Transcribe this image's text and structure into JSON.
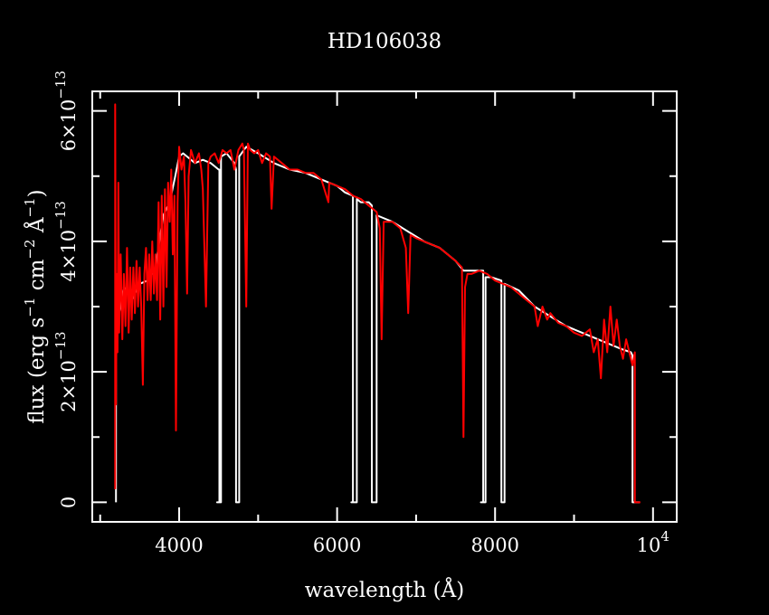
{
  "chart_data": {
    "type": "line",
    "title": "HD106038",
    "xlabel": "wavelength (Å)",
    "ylabel": {
      "prefix": "flux (erg s",
      "exp1": "−1",
      "mid1": " cm",
      "exp2": "−2",
      "mid2": " Å",
      "exp3": "−1",
      "suffix": ")"
    },
    "xlim": [
      2900,
      10300
    ],
    "ylim": [
      -3e-14,
      6.3e-13
    ],
    "x_ticks": [
      {
        "value": 4000,
        "label": "4000"
      },
      {
        "value": 6000,
        "label": "6000"
      },
      {
        "value": 8000,
        "label": "8000"
      },
      {
        "value": 10000,
        "label": "10",
        "exp": "4"
      }
    ],
    "y_ticks": [
      {
        "value": 0,
        "label": "0",
        "exp": ""
      },
      {
        "value": 2e-13,
        "label": "2×10",
        "exp": "−13"
      },
      {
        "value": 4e-13,
        "label": "4×10",
        "exp": "−13"
      },
      {
        "value": 6e-13,
        "label": "6×10",
        "exp": "−13"
      }
    ],
    "series": [
      {
        "color": "#ffffff",
        "points": [
          [
            3200,
            0
          ],
          [
            3200,
            3.5e-13
          ],
          [
            3240,
            2.9e-13
          ],
          [
            3300,
            3.3e-13
          ],
          [
            3400,
            3.1e-13
          ],
          [
            3500,
            3.35e-13
          ],
          [
            3600,
            3.4e-13
          ],
          [
            3700,
            3.6e-13
          ],
          [
            3800,
            4.4e-13
          ],
          [
            3880,
            4.6e-13
          ],
          [
            3950,
            5e-13
          ],
          [
            4000,
            5.3e-13
          ],
          [
            4050,
            5.35e-13
          ],
          [
            4100,
            5.3e-13
          ],
          [
            4200,
            5.2e-13
          ],
          [
            4300,
            5.25e-13
          ],
          [
            4400,
            5.2e-13
          ],
          [
            4450,
            5.15e-13
          ],
          [
            4500,
            5.1e-13
          ],
          [
            4510,
            5.1e-13
          ],
          [
            4510,
            0
          ],
          [
            4480,
            0
          ],
          [
            4530,
            0
          ],
          [
            4530,
            5.3e-13
          ],
          [
            4600,
            5.35e-13
          ],
          [
            4700,
            5.2e-13
          ],
          [
            4720,
            5.1e-13
          ],
          [
            4720,
            0
          ],
          [
            4760,
            0
          ],
          [
            4760,
            5.3e-13
          ],
          [
            4850,
            5.45e-13
          ],
          [
            5000,
            5.35e-13
          ],
          [
            5200,
            5.2e-13
          ],
          [
            5400,
            5.1e-13
          ],
          [
            5600,
            5.05e-13
          ],
          [
            5800,
            4.95e-13
          ],
          [
            6000,
            4.85e-13
          ],
          [
            6100,
            4.75e-13
          ],
          [
            6200,
            4.7e-13
          ],
          [
            6200,
            0
          ],
          [
            6180,
            0
          ],
          [
            6250,
            0
          ],
          [
            6250,
            4.65e-13
          ],
          [
            6300,
            4.6e-13
          ],
          [
            6400,
            4.6e-13
          ],
          [
            6440,
            4.55e-13
          ],
          [
            6440,
            0
          ],
          [
            6500,
            0
          ],
          [
            6500,
            4.4e-13
          ],
          [
            6700,
            4.3e-13
          ],
          [
            6900,
            4.15e-13
          ],
          [
            7100,
            4e-13
          ],
          [
            7300,
            3.9e-13
          ],
          [
            7500,
            3.7e-13
          ],
          [
            7600,
            3.55e-13
          ],
          [
            7700,
            3.55e-13
          ],
          [
            7850,
            3.55e-13
          ],
          [
            7850,
            0
          ],
          [
            7820,
            0
          ],
          [
            7880,
            0
          ],
          [
            7880,
            3.45e-13
          ],
          [
            7950,
            3.45e-13
          ],
          [
            8080,
            3.4e-13
          ],
          [
            8080,
            0
          ],
          [
            8100,
            0
          ],
          [
            8120,
            0
          ],
          [
            8120,
            3.35e-13
          ],
          [
            8300,
            3.25e-13
          ],
          [
            8500,
            3e-13
          ],
          [
            8700,
            2.85e-13
          ],
          [
            8900,
            2.7e-13
          ],
          [
            9100,
            2.6e-13
          ],
          [
            9300,
            2.5e-13
          ],
          [
            9500,
            2.4e-13
          ],
          [
            9600,
            2.35e-13
          ],
          [
            9720,
            2.3e-13
          ],
          [
            9740,
            2.25e-13
          ],
          [
            9740,
            0
          ],
          [
            9830,
            0
          ]
        ]
      },
      {
        "color": "#ff0000",
        "points": [
          [
            3190,
            2e-14
          ],
          [
            3190,
            6.1e-13
          ],
          [
            3200,
            1.5e-13
          ],
          [
            3210,
            3.5e-13
          ],
          [
            3220,
            2.3e-13
          ],
          [
            3230,
            4.9e-13
          ],
          [
            3240,
            2.6e-13
          ],
          [
            3260,
            3.8e-13
          ],
          [
            3280,
            2.5e-13
          ],
          [
            3300,
            3.5e-13
          ],
          [
            3320,
            2.7e-13
          ],
          [
            3340,
            3.9e-13
          ],
          [
            3360,
            2.6e-13
          ],
          [
            3380,
            3.6e-13
          ],
          [
            3400,
            2.8e-13
          ],
          [
            3420,
            3.6e-13
          ],
          [
            3440,
            2.9e-13
          ],
          [
            3460,
            3.7e-13
          ],
          [
            3480,
            3e-13
          ],
          [
            3500,
            3.6e-13
          ],
          [
            3520,
            3e-13
          ],
          [
            3540,
            1.8e-13
          ],
          [
            3560,
            3.5e-13
          ],
          [
            3580,
            3.9e-13
          ],
          [
            3600,
            3.1e-13
          ],
          [
            3620,
            3.8e-13
          ],
          [
            3640,
            3.1e-13
          ],
          [
            3660,
            4e-13
          ],
          [
            3680,
            3.2e-13
          ],
          [
            3700,
            3.8e-13
          ],
          [
            3720,
            3.1e-13
          ],
          [
            3740,
            4.6e-13
          ],
          [
            3760,
            2.8e-13
          ],
          [
            3780,
            4.7e-13
          ],
          [
            3800,
            3e-13
          ],
          [
            3820,
            4.8e-13
          ],
          [
            3840,
            3.3e-13
          ],
          [
            3860,
            4.9e-13
          ],
          [
            3880,
            4.3e-13
          ],
          [
            3900,
            5.1e-13
          ],
          [
            3920,
            3.8e-13
          ],
          [
            3940,
            4.7e-13
          ],
          [
            3960,
            1.1e-13
          ],
          [
            3980,
            4.6e-13
          ],
          [
            4000,
            5.45e-13
          ],
          [
            4030,
            5.1e-13
          ],
          [
            4060,
            5.3e-13
          ],
          [
            4080,
            4.6e-13
          ],
          [
            4100,
            3.2e-13
          ],
          [
            4120,
            5e-13
          ],
          [
            4150,
            5.4e-13
          ],
          [
            4200,
            5.2e-13
          ],
          [
            4250,
            5.35e-13
          ],
          [
            4280,
            5.1e-13
          ],
          [
            4300,
            4.8e-13
          ],
          [
            4340,
            3e-13
          ],
          [
            4370,
            5.2e-13
          ],
          [
            4400,
            5.3e-13
          ],
          [
            4450,
            5.35e-13
          ],
          [
            4500,
            5.2e-13
          ],
          [
            4550,
            5.4e-13
          ],
          [
            4600,
            5.35e-13
          ],
          [
            4650,
            5.4e-13
          ],
          [
            4700,
            5.1e-13
          ],
          [
            4750,
            5.4e-13
          ],
          [
            4800,
            5.5e-13
          ],
          [
            4820,
            5.4e-13
          ],
          [
            4850,
            3e-13
          ],
          [
            4870,
            5.5e-13
          ],
          [
            4900,
            5.4e-13
          ],
          [
            4950,
            5.35e-13
          ],
          [
            5000,
            5.4e-13
          ],
          [
            5050,
            5.2e-13
          ],
          [
            5100,
            5.35e-13
          ],
          [
            5150,
            5.3e-13
          ],
          [
            5170,
            4.5e-13
          ],
          [
            5200,
            5.3e-13
          ],
          [
            5300,
            5.2e-13
          ],
          [
            5400,
            5.1e-13
          ],
          [
            5500,
            5.1e-13
          ],
          [
            5600,
            5.05e-13
          ],
          [
            5700,
            5.05e-13
          ],
          [
            5800,
            4.95e-13
          ],
          [
            5890,
            4.6e-13
          ],
          [
            5900,
            4.9e-13
          ],
          [
            6000,
            4.85e-13
          ],
          [
            6100,
            4.8e-13
          ],
          [
            6200,
            4.7e-13
          ],
          [
            6300,
            4.65e-13
          ],
          [
            6400,
            4.55e-13
          ],
          [
            6500,
            4.45e-13
          ],
          [
            6540,
            4.2e-13
          ],
          [
            6563,
            2.5e-13
          ],
          [
            6590,
            4.3e-13
          ],
          [
            6700,
            4.3e-13
          ],
          [
            6800,
            4.2e-13
          ],
          [
            6870,
            3.9e-13
          ],
          [
            6900,
            2.9e-13
          ],
          [
            6930,
            4.1e-13
          ],
          [
            7000,
            4.05e-13
          ],
          [
            7100,
            4e-13
          ],
          [
            7200,
            3.95e-13
          ],
          [
            7300,
            3.9e-13
          ],
          [
            7400,
            3.8e-13
          ],
          [
            7500,
            3.7e-13
          ],
          [
            7580,
            3.6e-13
          ],
          [
            7600,
            1e-13
          ],
          [
            7620,
            3.3e-13
          ],
          [
            7650,
            3.5e-13
          ],
          [
            7700,
            3.5e-13
          ],
          [
            7800,
            3.55e-13
          ],
          [
            7900,
            3.5e-13
          ],
          [
            8000,
            3.4e-13
          ],
          [
            8100,
            3.35e-13
          ],
          [
            8200,
            3.3e-13
          ],
          [
            8300,
            3.2e-13
          ],
          [
            8400,
            3.1e-13
          ],
          [
            8500,
            3e-13
          ],
          [
            8540,
            2.7e-13
          ],
          [
            8600,
            3e-13
          ],
          [
            8660,
            2.8e-13
          ],
          [
            8700,
            2.9e-13
          ],
          [
            8800,
            2.75e-13
          ],
          [
            8900,
            2.7e-13
          ],
          [
            9000,
            2.6e-13
          ],
          [
            9100,
            2.55e-13
          ],
          [
            9200,
            2.65e-13
          ],
          [
            9250,
            2.3e-13
          ],
          [
            9300,
            2.5e-13
          ],
          [
            9340,
            1.9e-13
          ],
          [
            9380,
            2.8e-13
          ],
          [
            9420,
            2.3e-13
          ],
          [
            9460,
            3e-13
          ],
          [
            9500,
            2.4e-13
          ],
          [
            9540,
            2.8e-13
          ],
          [
            9580,
            2.4e-13
          ],
          [
            9620,
            2.2e-13
          ],
          [
            9660,
            2.5e-13
          ],
          [
            9700,
            2.3e-13
          ],
          [
            9740,
            2.1e-13
          ],
          [
            9770,
            2.3e-13
          ],
          [
            9770,
            0
          ],
          [
            9840,
            0
          ]
        ]
      }
    ]
  }
}
